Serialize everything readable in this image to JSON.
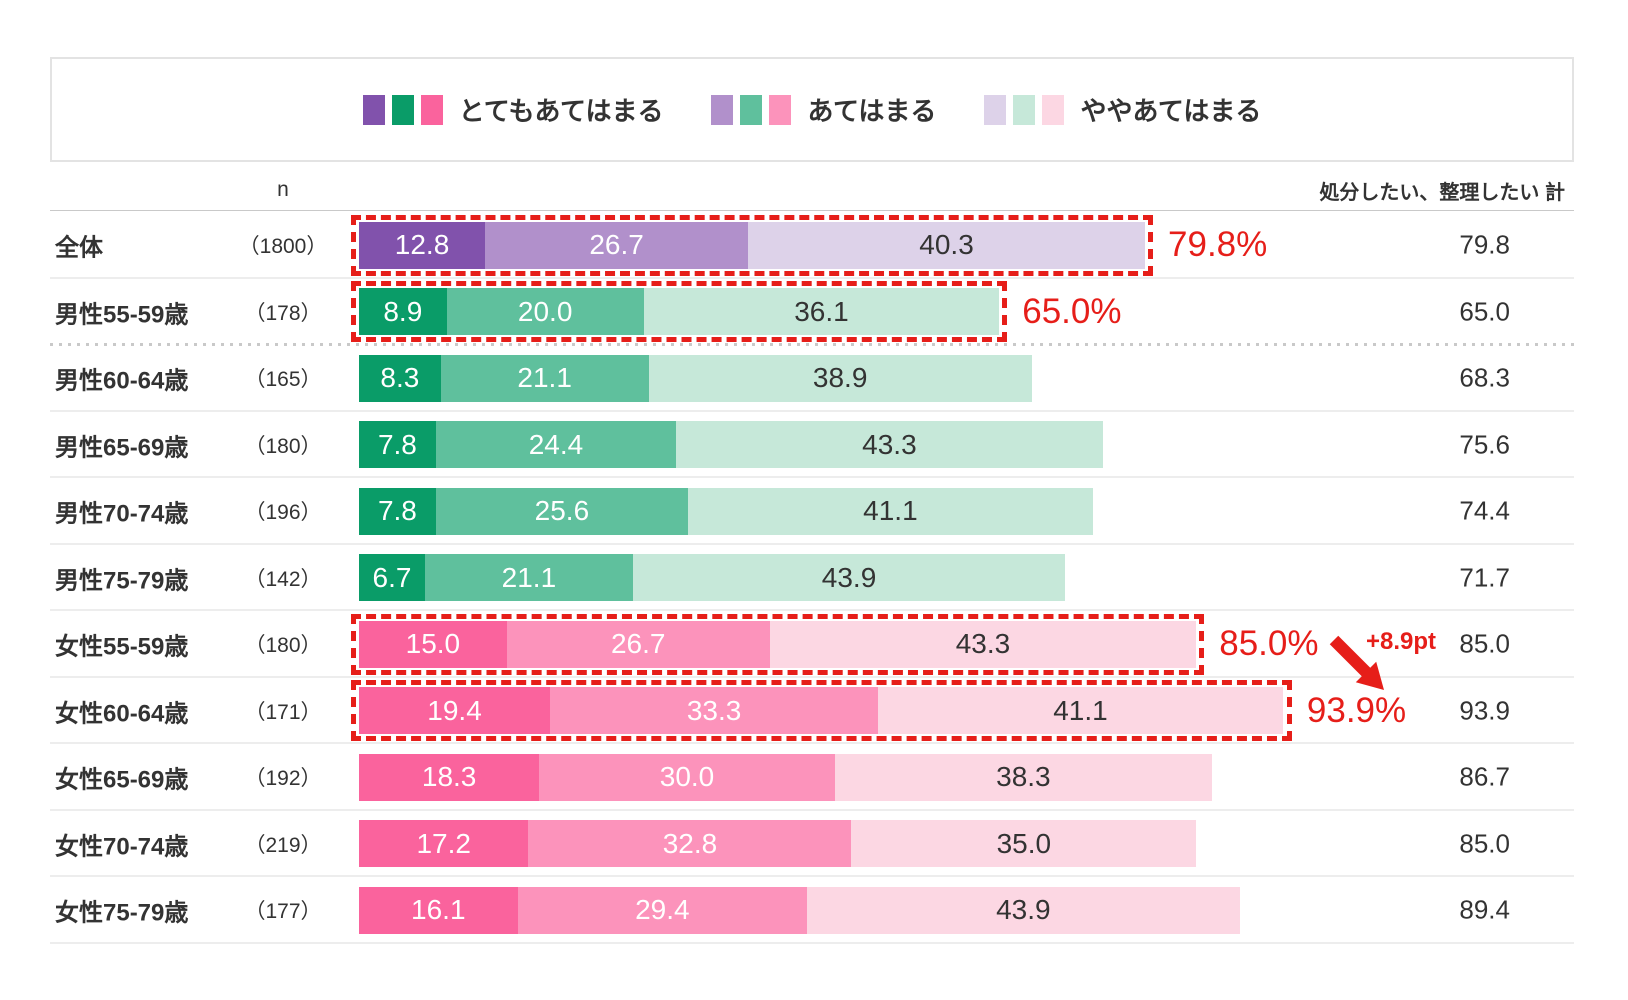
{
  "colors": {
    "accent_red": "#e61e19",
    "text": "#333333",
    "separator": "#ededed",
    "separator_dotted": "#c9c9c9",
    "header_line": "#c9c9c9",
    "legend_border": "#e3e3e3"
  },
  "palettes": {
    "purple": [
      "#8152ac",
      "#b190cb",
      "#ddd2e9"
    ],
    "green": [
      "#0a9c68",
      "#5fc09d",
      "#c6e8d9"
    ],
    "pink": [
      "#fa639d",
      "#fc93bb",
      "#fcd7e3"
    ]
  },
  "legend": {
    "groups": [
      {
        "label": "とてもあてはまる",
        "swatches": [
          "#8152ac",
          "#0a9c68",
          "#fa639d"
        ]
      },
      {
        "label": "あてはまる",
        "swatches": [
          "#b190cb",
          "#5fc09d",
          "#fc93bb"
        ]
      },
      {
        "label": "ややあてはまる",
        "swatches": [
          "#ddd2e9",
          "#c6e8d9",
          "#fcd7e3"
        ]
      }
    ]
  },
  "header": {
    "n_label": "n",
    "total_label": "処分したい、整理したい 計"
  },
  "chart_data": {
    "type": "bar",
    "orientation": "horizontal",
    "stacked": true,
    "unit": "%",
    "xlim": [
      0,
      100
    ],
    "series_labels": [
      "とてもあてはまる",
      "あてはまる",
      "ややあてはまる"
    ],
    "rows": [
      {
        "label": "全体",
        "n": "（1800）",
        "values": [
          12.8,
          26.7,
          40.3
        ],
        "total": 79.8,
        "palette": "purple",
        "highlight_label": "79.8%"
      },
      {
        "label": "男性55-59歳",
        "n": "（178）",
        "values": [
          8.9,
          20.0,
          36.1
        ],
        "total": 65.0,
        "palette": "green",
        "highlight_label": "65.0%",
        "divider_after": "dotted"
      },
      {
        "label": "男性60-64歳",
        "n": "（165）",
        "values": [
          8.3,
          21.1,
          38.9
        ],
        "total": 68.3,
        "palette": "green"
      },
      {
        "label": "男性65-69歳",
        "n": "（180）",
        "values": [
          7.8,
          24.4,
          43.3
        ],
        "total": 75.6,
        "palette": "green"
      },
      {
        "label": "男性70-74歳",
        "n": "（196）",
        "values": [
          7.8,
          25.6,
          41.1
        ],
        "total": 74.4,
        "palette": "green"
      },
      {
        "label": "男性75-79歳",
        "n": "（142）",
        "values": [
          6.7,
          21.1,
          43.9
        ],
        "total": 71.7,
        "palette": "green"
      },
      {
        "label": "女性55-59歳",
        "n": "（180）",
        "values": [
          15.0,
          26.7,
          43.3
        ],
        "total": 85.0,
        "palette": "pink",
        "highlight_label": "85.0%"
      },
      {
        "label": "女性60-64歳",
        "n": "（171）",
        "values": [
          19.4,
          33.3,
          41.1
        ],
        "total": 93.9,
        "palette": "pink",
        "highlight_label": "93.9%"
      },
      {
        "label": "女性65-69歳",
        "n": "（192）",
        "values": [
          18.3,
          30.0,
          38.3
        ],
        "total": 86.7,
        "palette": "pink"
      },
      {
        "label": "女性70-74歳",
        "n": "（219）",
        "values": [
          17.2,
          32.8,
          35.0
        ],
        "total": 85.0,
        "palette": "pink"
      },
      {
        "label": "女性75-79歳",
        "n": "（177）",
        "values": [
          16.1,
          29.4,
          43.9
        ],
        "total": 89.4,
        "palette": "pink"
      }
    ],
    "annotation": {
      "label": "+8.9pt",
      "from_row": "女性55-59歳",
      "to_row": "女性60-64歳",
      "direction": "down-right"
    }
  }
}
